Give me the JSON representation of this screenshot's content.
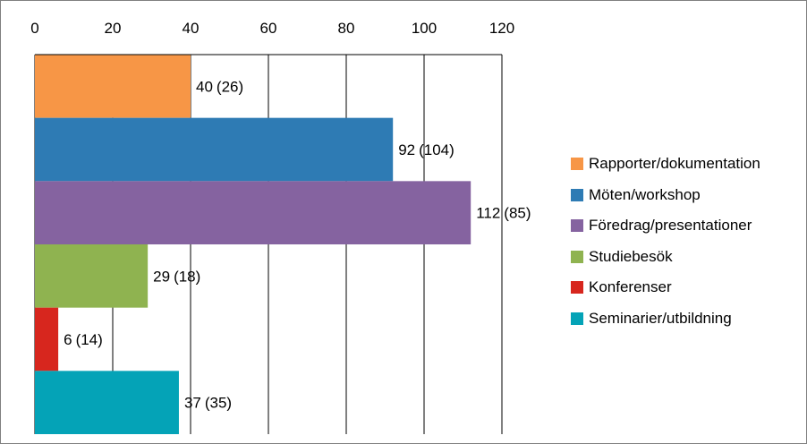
{
  "chart_data": {
    "type": "bar",
    "orientation": "horizontal",
    "categories": [
      "Rapporter/dokumentation",
      "Möten/workshop",
      "Föredrag/presentationer",
      "Studiebesök",
      "Konferenser",
      "Seminarier/utbildning"
    ],
    "values": [
      40,
      92,
      112,
      29,
      6,
      37
    ],
    "previous_values": [
      26,
      104,
      85,
      18,
      14,
      35
    ],
    "data_labels": [
      "40",
      "92",
      "112",
      "29",
      "6",
      "37"
    ],
    "previous_labels": [
      "(26)",
      "(104)",
      "(85)",
      "(18)",
      "(14)",
      "(35)"
    ],
    "colors": [
      "#F79646",
      "#2E7BB4",
      "#8563A0",
      "#8FB350",
      "#D7261E",
      "#04A3B7"
    ],
    "xlim": [
      0,
      120
    ],
    "xticks": [
      "0",
      "20",
      "40",
      "60",
      "80",
      "100",
      "120"
    ],
    "axis_position": "top",
    "grid": "vertical",
    "legend": "right",
    "title": "",
    "xlabel": "",
    "ylabel": ""
  }
}
